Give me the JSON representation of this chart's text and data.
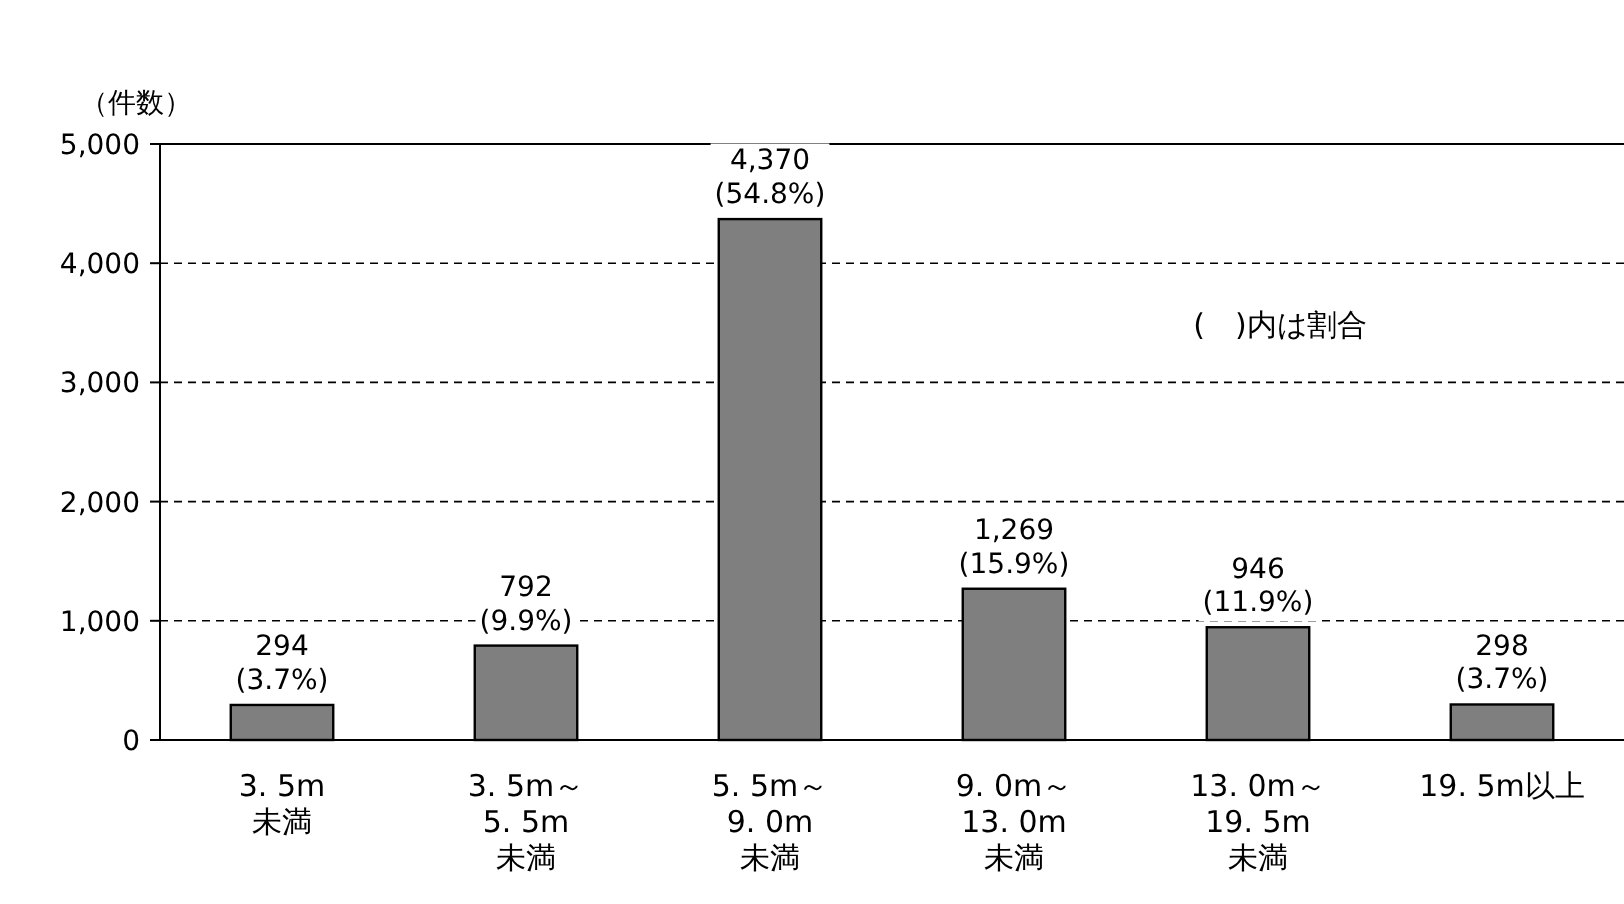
{
  "chart_data": {
    "type": "bar",
    "ylabel": "（件数）",
    "categories": [
      "3. 5m\n未満",
      "3. 5m～\n5. 5m\n未満",
      "5. 5m～\n9. 0m\n未満",
      "9. 0m～\n13. 0m\n未満",
      "13. 0m～\n19. 5m\n未満",
      "19. 5m以上"
    ],
    "values": [
      294,
      792,
      4370,
      1269,
      946,
      298
    ],
    "value_labels": [
      "294\n(3.7%)",
      "792\n(9.9%)",
      "4,370\n(54.8%)",
      "1,269\n(15.9%)",
      "946\n(11.9%)",
      "298\n(3.7%)"
    ],
    "color": "#7f7f7f",
    "ylim": [
      0,
      5000
    ],
    "yticks": [
      {
        "value": 0,
        "label": "0"
      },
      {
        "value": 1000,
        "label": "1,000"
      },
      {
        "value": 2000,
        "label": "2,000"
      },
      {
        "value": 3000,
        "label": "3,000"
      },
      {
        "value": 4000,
        "label": "4,000"
      },
      {
        "value": 5000,
        "label": "5,000"
      }
    ],
    "grid": "y",
    "annotations": [
      "(　)内は割合"
    ]
  }
}
